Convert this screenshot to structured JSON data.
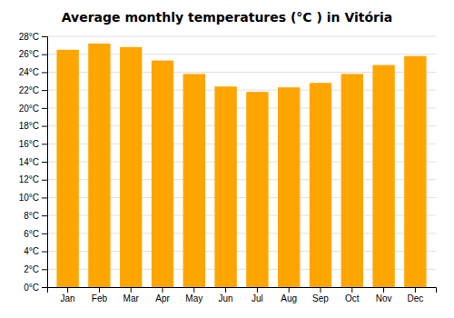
{
  "chart_data": {
    "type": "bar",
    "title": "Average monthly temperatures (°C ) in Vitória",
    "categories": [
      "Jan",
      "Feb",
      "Mar",
      "Apr",
      "May",
      "Jun",
      "Jul",
      "Aug",
      "Sep",
      "Oct",
      "Nov",
      "Dec"
    ],
    "values": [
      26.5,
      27.2,
      26.8,
      25.3,
      23.8,
      22.4,
      21.8,
      22.3,
      22.8,
      23.8,
      24.8,
      25.8
    ],
    "color": "#FFA500",
    "ylim": [
      0,
      28
    ],
    "yticks": [
      {
        "value": 0,
        "label": "0°C"
      },
      {
        "value": 2,
        "label": "2°C"
      },
      {
        "value": 4,
        "label": "4°C"
      },
      {
        "value": 6,
        "label": "6°C"
      },
      {
        "value": 8,
        "label": "8°C"
      },
      {
        "value": 10,
        "label": "10°C"
      },
      {
        "value": 12,
        "label": "12°C"
      },
      {
        "value": 14,
        "label": "14°C"
      },
      {
        "value": 16,
        "label": "16°C"
      },
      {
        "value": 18,
        "label": "18°C"
      },
      {
        "value": 20,
        "label": "20°C"
      },
      {
        "value": 22,
        "label": "22°C"
      },
      {
        "value": 24,
        "label": "24°C"
      },
      {
        "value": 26,
        "label": "26°C"
      },
      {
        "value": 28,
        "label": "28°C"
      }
    ],
    "grid": true
  }
}
